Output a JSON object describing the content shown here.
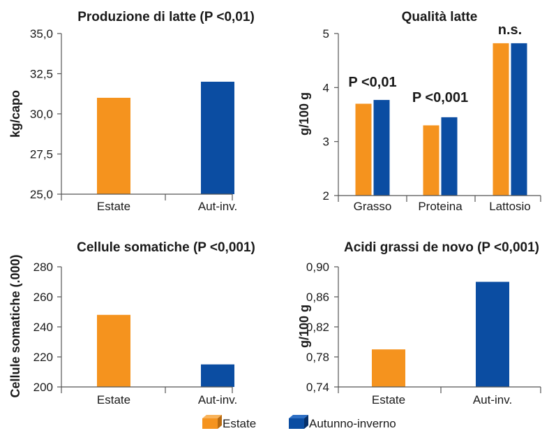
{
  "colors": {
    "estate": "#F5931E",
    "autunno": "#0B4DA2",
    "axis": "#555555"
  },
  "legend": [
    {
      "label": "Estate",
      "color": "#F5931E"
    },
    {
      "label": "Autunno-inverno",
      "color": "#0B4DA2"
    }
  ],
  "chart_data": [
    {
      "type": "bar",
      "title": "Produzione di latte (P <0,01)",
      "ylabel": "kg/capo",
      "xlabel": "",
      "ylim": [
        25.0,
        35.0
      ],
      "yticks": [
        "25,0",
        "27,5",
        "30,0",
        "32,5",
        "35,0"
      ],
      "ytick_values": [
        25.0,
        27.5,
        30.0,
        32.5,
        35.0
      ],
      "categories": [
        "Estate",
        "Aut-inv."
      ],
      "values": [
        31.0,
        32.0
      ],
      "colors": [
        "#F5931E",
        "#0B4DA2"
      ],
      "annotations": []
    },
    {
      "type": "bar",
      "title": "Qualità latte",
      "ylabel": "g/100 g",
      "xlabel": "",
      "ylim": [
        2,
        5
      ],
      "yticks": [
        "2",
        "3",
        "4",
        "5"
      ],
      "ytick_values": [
        2,
        3,
        4,
        5
      ],
      "categories": [
        "Grasso",
        "Proteina",
        "Lattosio"
      ],
      "series": [
        {
          "name": "Estate",
          "values": [
            3.7,
            3.3,
            4.82
          ]
        },
        {
          "name": "Autunno-inverno",
          "values": [
            3.77,
            3.45,
            4.82
          ]
        }
      ],
      "annotations": [
        "P <0,01",
        "P <0,001",
        "n.s."
      ]
    },
    {
      "type": "bar",
      "title": "Cellule somatiche (P <0,001)",
      "ylabel": "Cellule somatiche (.000)",
      "xlabel": "",
      "ylim": [
        200,
        280
      ],
      "yticks": [
        "200",
        "220",
        "240",
        "260",
        "280"
      ],
      "ytick_values": [
        200,
        220,
        240,
        260,
        280
      ],
      "categories": [
        "Estate",
        "Aut-inv."
      ],
      "values": [
        248,
        215
      ],
      "colors": [
        "#F5931E",
        "#0B4DA2"
      ],
      "annotations": []
    },
    {
      "type": "bar",
      "title": "Acidi grassi de novo (P <0,001)",
      "ylabel": "g/100 g",
      "xlabel": "",
      "ylim": [
        0.74,
        0.9
      ],
      "yticks": [
        "0,74",
        "0,78",
        "0,82",
        "0,86",
        "0,90"
      ],
      "ytick_values": [
        0.74,
        0.78,
        0.82,
        0.86,
        0.9
      ],
      "categories": [
        "Estate",
        "Aut-inv."
      ],
      "values": [
        0.79,
        0.88
      ],
      "colors": [
        "#F5931E",
        "#0B4DA2"
      ],
      "annotations": []
    }
  ]
}
